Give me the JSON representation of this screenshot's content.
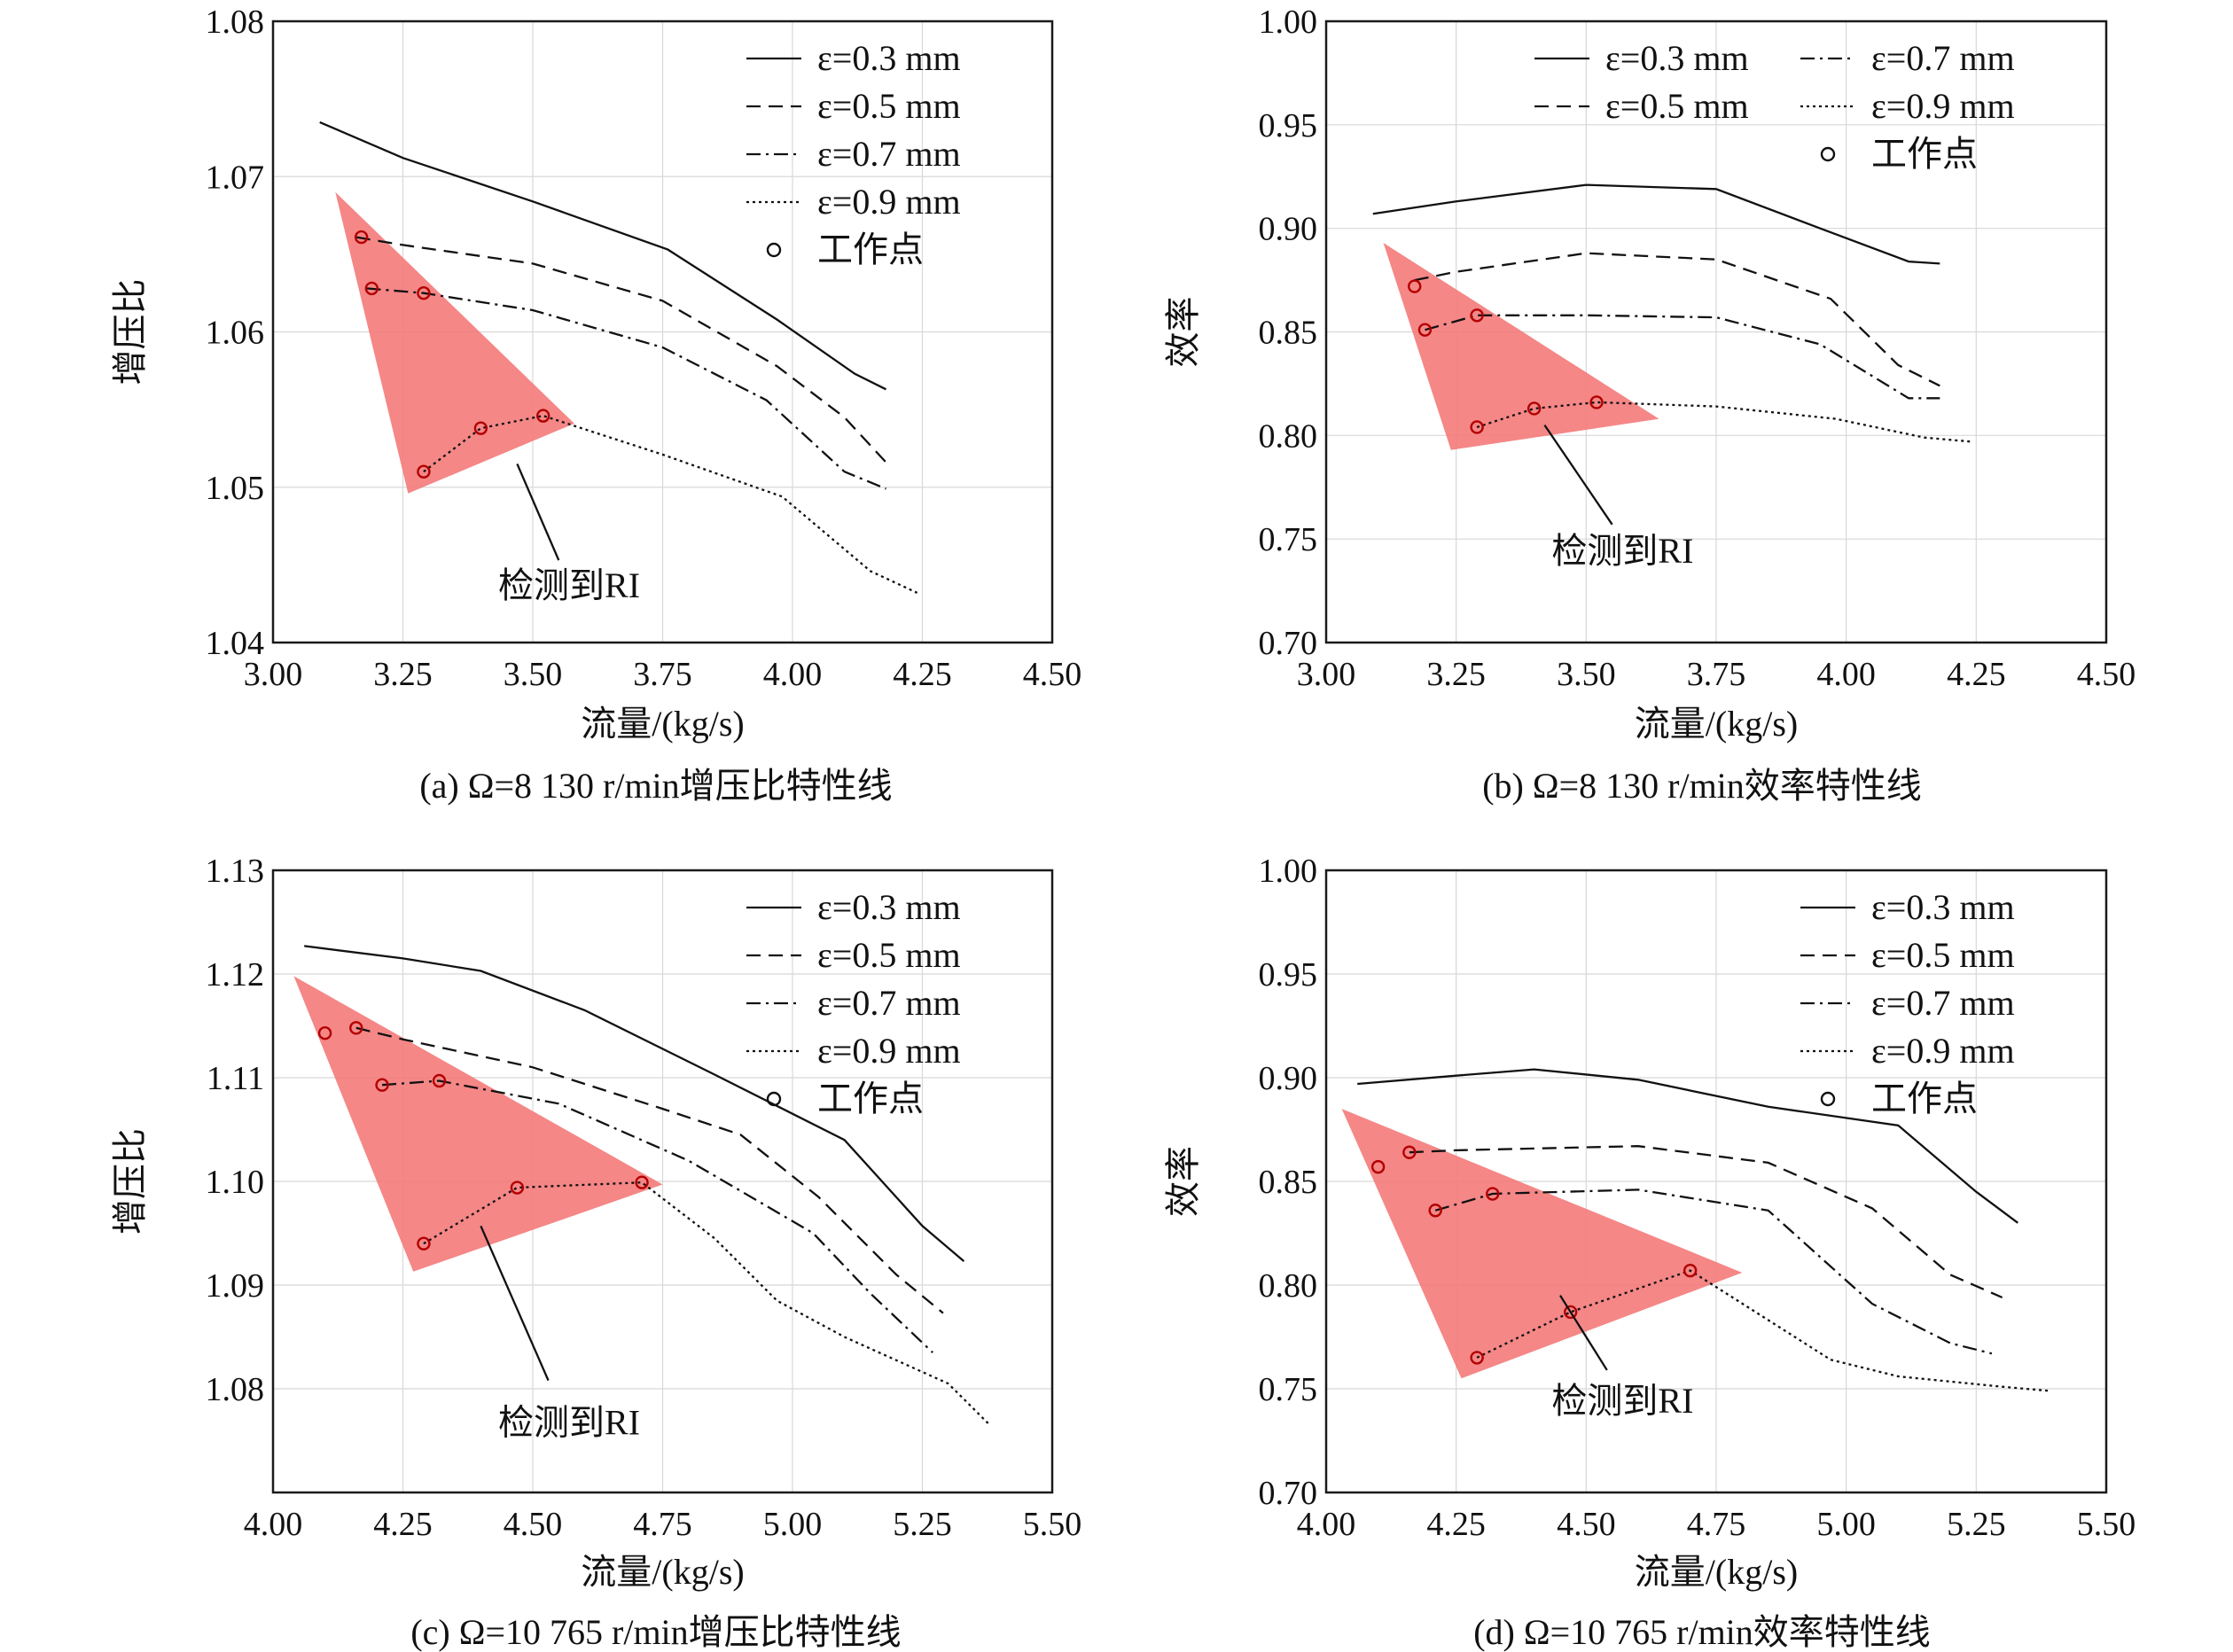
{
  "chart_data": [
    {
      "type": "line",
      "caption": "(a) Ω=8 130 r/min增压比特性线",
      "xlabel": "流量/(kg/s)",
      "ylabel": "增压比",
      "xlim": [
        3.0,
        4.5
      ],
      "ylim": [
        1.04,
        1.08
      ],
      "xticks": [
        "3.00",
        "3.25",
        "3.50",
        "3.75",
        "4.00",
        "4.25",
        "4.50"
      ],
      "yticks": [
        "1.04",
        "1.05",
        "1.06",
        "1.07",
        "1.08"
      ],
      "legend": {
        "position": "top-right",
        "columns": 1
      },
      "series": [
        {
          "name": "ε=0.3 mm",
          "dash": "solid",
          "x": [
            3.09,
            3.25,
            3.5,
            3.76,
            3.97,
            4.12,
            4.18
          ],
          "y": [
            1.0735,
            1.0712,
            1.0684,
            1.0653,
            1.0608,
            1.0573,
            1.0563
          ]
        },
        {
          "name": "ε=0.5 mm",
          "dash": "dash",
          "x": [
            3.16,
            3.25,
            3.5,
            3.75,
            3.97,
            4.1,
            4.18
          ],
          "y": [
            1.0661,
            1.0656,
            1.0644,
            1.062,
            1.0578,
            1.0545,
            1.0516
          ]
        },
        {
          "name": "ε=0.7 mm",
          "dash": "dashdot",
          "x": [
            3.18,
            3.29,
            3.5,
            3.75,
            3.95,
            4.1,
            4.18
          ],
          "y": [
            1.0628,
            1.0625,
            1.0614,
            1.059,
            1.0556,
            1.051,
            1.0499
          ]
        },
        {
          "name": "ε=0.9 mm",
          "dash": "dot",
          "x": [
            3.29,
            3.4,
            3.52,
            3.75,
            3.98,
            4.15,
            4.24
          ],
          "y": [
            1.051,
            1.0538,
            1.0546,
            1.0521,
            1.0494,
            1.0446,
            1.0432
          ]
        }
      ],
      "operating_points": {
        "name": "工作点",
        "x": [
          3.17,
          3.19,
          3.29,
          3.29,
          3.4,
          3.52
        ],
        "y": [
          1.0661,
          1.0628,
          1.0625,
          1.051,
          1.0538,
          1.0546
        ]
      },
      "region": {
        "label": "检测到RI",
        "polygon": [
          [
            3.12,
            1.069
          ],
          [
            3.26,
            1.0496
          ],
          [
            3.58,
            1.0541
          ]
        ],
        "label_at": [
          3.57,
          1.0429
        ],
        "pointer_from": [
          3.47,
          1.0515
        ],
        "pointer_to": [
          3.55,
          1.0453
        ]
      }
    },
    {
      "type": "line",
      "caption": "(b) Ω=8 130 r/min效率特性线",
      "xlabel": "流量/(kg/s)",
      "ylabel": "效率",
      "xlim": [
        3.0,
        4.5
      ],
      "ylim": [
        0.7,
        1.0
      ],
      "xticks": [
        "3.00",
        "3.25",
        "3.50",
        "3.75",
        "4.00",
        "4.25",
        "4.50"
      ],
      "yticks": [
        "0.70",
        "0.75",
        "0.80",
        "0.85",
        "0.90",
        "0.95",
        "1.00"
      ],
      "legend": {
        "position": "top-right",
        "columns": 2
      },
      "series": [
        {
          "name": "ε=0.3 mm",
          "dash": "solid",
          "x": [
            3.09,
            3.25,
            3.5,
            3.75,
            3.95,
            4.12,
            4.18
          ],
          "y": [
            0.907,
            0.913,
            0.921,
            0.919,
            0.9,
            0.884,
            0.883
          ]
        },
        {
          "name": "ε=0.5 mm",
          "dash": "dash",
          "x": [
            3.17,
            3.25,
            3.5,
            3.75,
            3.97,
            4.1,
            4.18
          ],
          "y": [
            0.875,
            0.879,
            0.888,
            0.885,
            0.866,
            0.834,
            0.824
          ]
        },
        {
          "name": "ε=0.7 mm",
          "dash": "dashdot",
          "x": [
            3.19,
            3.29,
            3.5,
            3.75,
            3.95,
            4.12,
            4.18
          ],
          "y": [
            0.851,
            0.858,
            0.858,
            0.857,
            0.844,
            0.818,
            0.818
          ]
        },
        {
          "name": "ε=0.9 mm",
          "dash": "dot",
          "x": [
            3.29,
            3.4,
            3.52,
            3.75,
            3.98,
            4.15,
            4.24
          ],
          "y": [
            0.804,
            0.813,
            0.816,
            0.814,
            0.808,
            0.799,
            0.797
          ]
        }
      ],
      "operating_points": {
        "name": "工作点",
        "x": [
          3.17,
          3.19,
          3.29,
          3.29,
          3.4,
          3.52
        ],
        "y": [
          0.872,
          0.851,
          0.858,
          0.804,
          0.813,
          0.816
        ]
      },
      "region": {
        "label": "检测到RI",
        "polygon": [
          [
            3.11,
            0.893
          ],
          [
            3.24,
            0.793
          ],
          [
            3.64,
            0.808
          ]
        ],
        "label_at": [
          3.57,
          0.7385
        ],
        "pointer_from": [
          3.42,
          0.805
        ],
        "pointer_to": [
          3.55,
          0.757
        ]
      }
    },
    {
      "type": "line",
      "caption": "(c) Ω=10 765 r/min增压比特性线",
      "xlabel": "流量/(kg/s)",
      "ylabel": "增压比",
      "xlim": [
        4.0,
        5.5
      ],
      "ylim": [
        1.07,
        1.13
      ],
      "xticks": [
        "4.00",
        "4.25",
        "4.50",
        "4.75",
        "5.00",
        "5.25",
        "5.50"
      ],
      "yticks": [
        "1.08",
        "1.09",
        "1.10",
        "1.11",
        "1.12",
        "1.13"
      ],
      "legend": {
        "position": "top-right",
        "columns": 1
      },
      "series": [
        {
          "name": "ε=0.3 mm",
          "dash": "solid",
          "x": [
            4.06,
            4.25,
            4.4,
            4.6,
            4.85,
            5.1,
            5.25,
            5.33
          ],
          "y": [
            1.1227,
            1.1215,
            1.1203,
            1.1165,
            1.1103,
            1.104,
            1.0957,
            1.0923
          ]
        },
        {
          "name": "ε=0.5 mm",
          "dash": "dash",
          "x": [
            4.16,
            4.25,
            4.5,
            4.75,
            4.9,
            5.05,
            5.2,
            5.29
          ],
          "y": [
            1.1148,
            1.1137,
            1.111,
            1.107,
            1.1045,
            1.0985,
            1.091,
            1.0873
          ]
        },
        {
          "name": "ε=0.7 mm",
          "dash": "dashdot",
          "x": [
            4.21,
            4.32,
            4.55,
            4.8,
            5.04,
            5.15,
            5.27
          ],
          "y": [
            1.1093,
            1.1097,
            1.1075,
            1.102,
            1.095,
            1.0892,
            1.0835
          ]
        },
        {
          "name": "ε=0.9 mm",
          "dash": "dot",
          "x": [
            4.29,
            4.47,
            4.71,
            4.85,
            4.97,
            5.1,
            5.3,
            5.38
          ],
          "y": [
            1.094,
            1.0994,
            1.0999,
            1.0945,
            1.0885,
            1.085,
            1.0805,
            1.0765
          ]
        }
      ],
      "operating_points": {
        "name": "工作点",
        "x": [
          4.1,
          4.16,
          4.21,
          4.32,
          4.29,
          4.47,
          4.71
        ],
        "y": [
          1.1143,
          1.1148,
          1.1093,
          1.1097,
          1.094,
          1.0994,
          1.0999
        ]
      },
      "region": {
        "label": "检测到RI",
        "polygon": [
          [
            4.04,
            1.1198
          ],
          [
            4.27,
            1.0913
          ],
          [
            4.75,
            1.0997
          ]
        ],
        "label_at": [
          4.57,
          1.0756
        ],
        "pointer_from": [
          4.4,
          1.0957
        ],
        "pointer_to": [
          4.53,
          1.0808
        ]
      }
    },
    {
      "type": "line",
      "caption": "(d) Ω=10 765 r/min效率特性线",
      "xlabel": "流量/(kg/s)",
      "ylabel": "效率",
      "xlim": [
        4.0,
        5.5
      ],
      "ylim": [
        0.7,
        1.0
      ],
      "xticks": [
        "4.00",
        "4.25",
        "4.50",
        "4.75",
        "5.00",
        "5.25",
        "5.50"
      ],
      "yticks": [
        "0.70",
        "0.75",
        "0.80",
        "0.85",
        "0.90",
        "0.95",
        "1.00"
      ],
      "legend": {
        "position": "top-right",
        "columns": 1
      },
      "series": [
        {
          "name": "ε=0.3 mm",
          "dash": "solid",
          "x": [
            4.06,
            4.25,
            4.4,
            4.6,
            4.85,
            5.1,
            5.25,
            5.33
          ],
          "y": [
            0.897,
            0.901,
            0.904,
            0.899,
            0.886,
            0.877,
            0.845,
            0.83
          ]
        },
        {
          "name": "ε=0.5 mm",
          "dash": "dash",
          "x": [
            4.16,
            4.25,
            4.6,
            4.85,
            5.05,
            5.2,
            5.3
          ],
          "y": [
            0.864,
            0.865,
            0.867,
            0.859,
            0.837,
            0.805,
            0.794
          ]
        },
        {
          "name": "ε=0.7 mm",
          "dash": "dashdot",
          "x": [
            4.21,
            4.32,
            4.6,
            4.85,
            5.05,
            5.2,
            5.28
          ],
          "y": [
            0.836,
            0.844,
            0.846,
            0.836,
            0.791,
            0.772,
            0.767
          ]
        },
        {
          "name": "ε=0.9 mm",
          "dash": "dot",
          "x": [
            4.29,
            4.47,
            4.7,
            4.97,
            5.1,
            5.3,
            5.39
          ],
          "y": [
            0.765,
            0.787,
            0.807,
            0.764,
            0.756,
            0.751,
            0.749
          ]
        }
      ],
      "operating_points": {
        "name": "工作点",
        "x": [
          4.1,
          4.16,
          4.21,
          4.32,
          4.29,
          4.47,
          4.7
        ],
        "y": [
          0.857,
          0.864,
          0.836,
          0.844,
          0.765,
          0.787,
          0.807
        ]
      },
      "region": {
        "label": "检测到RI",
        "polygon": [
          [
            4.03,
            0.885
          ],
          [
            4.26,
            0.755
          ],
          [
            4.8,
            0.806
          ]
        ],
        "label_at": [
          4.57,
          0.7385
        ],
        "pointer_from": [
          4.45,
          0.795
        ],
        "pointer_to": [
          4.54,
          0.759
        ]
      }
    }
  ]
}
